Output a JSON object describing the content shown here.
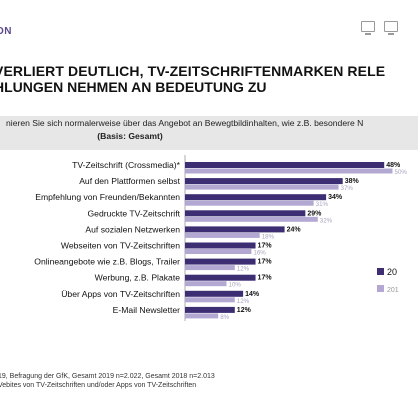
{
  "header": {
    "brand": "ON"
  },
  "title": {
    "line1": "VERLIERT DEUTLICH, TV-ZEITSCHRIFTENMARKEN RELE",
    "line2": "HLUNGEN NEHMEN AN BEDEUTUNG ZU"
  },
  "question": {
    "line1": "nieren Sie sich normalerweise über das Angebot an Bewegtbildinhalten, wie z.B. besondere N",
    "line2": "(Basis: Gesamt)"
  },
  "chart_data": {
    "type": "bar",
    "orientation": "horizontal",
    "categories": [
      "TV-Zeitschrift (Crossmedia)*",
      "Auf den Plattformen selbst",
      "Empfehlung von Freunden/Bekannten",
      "Gedruckte TV-Zeitschrift",
      "Auf sozialen Netzwerken",
      "Webseiten von TV-Zeitschriften",
      "Onlineangebote wie z.B. Blogs, Trailer",
      "Werbung, z.B. Plakate",
      "Über Apps von TV-Zeitschriften",
      "E-Mail Newsletter"
    ],
    "series": [
      {
        "name": "20",
        "color": "#3d2e73",
        "values": [
          48,
          38,
          34,
          29,
          24,
          17,
          17,
          17,
          14,
          12
        ]
      },
      {
        "name": "201",
        "color": "#b3a8d2",
        "values": [
          50,
          37,
          31,
          32,
          18,
          16,
          12,
          10,
          12,
          8
        ]
      }
    ],
    "value_labels": {
      "series1": [
        "48%",
        "38%",
        "34%",
        "29%",
        "24%",
        "17%",
        "17%",
        "17%",
        "14%",
        "12%"
      ],
      "series2": [
        "50%",
        "37%",
        "31%",
        "32%",
        "18%",
        "16%",
        "12%",
        "10%",
        "12%",
        "8%"
      ]
    },
    "xlim": [
      0,
      55
    ],
    "grid": false,
    "legend": "right"
  },
  "footer": {
    "line1": "19, Befragung der GfK, Gesamt 2019 n=2.022, Gesamt 2018 n=2.013",
    "line2": "Vebites von TV-Zeitschriften und/oder Apps von TV-Zeitschriften"
  },
  "colors": {
    "brand": "#5b4a8b",
    "series_2019": "#3d2e73",
    "series_2018": "#b3a8d2"
  }
}
